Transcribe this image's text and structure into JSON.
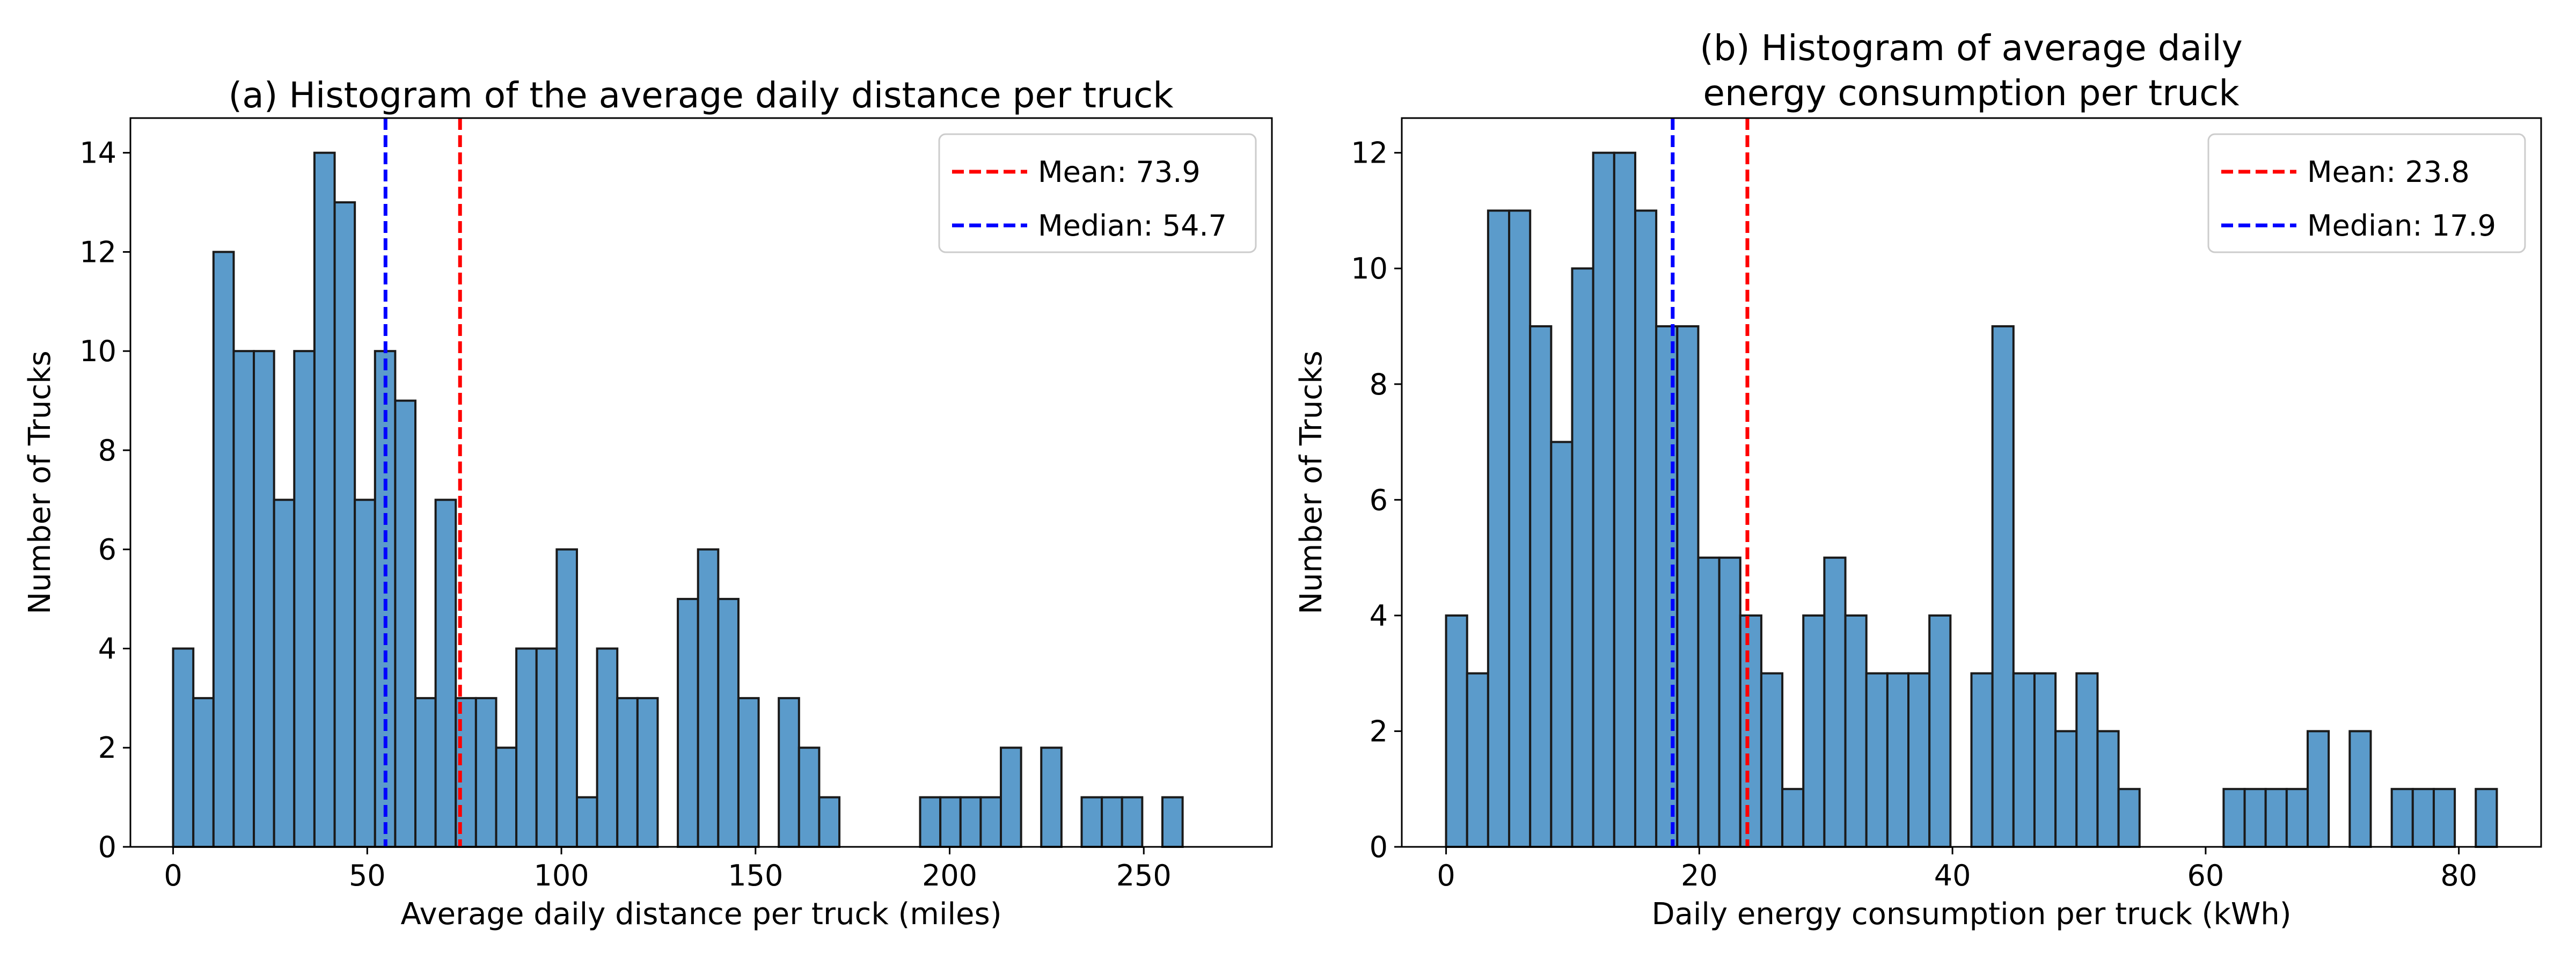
{
  "chart_data": [
    {
      "type": "bar",
      "title": [
        "(a) Histogram of the average daily distance per truck"
      ],
      "xlabel": "Average daily distance per truck (miles)",
      "ylabel": "Number of Trucks",
      "xlim": [
        -11,
        283
      ],
      "ylim": [
        0,
        14.7
      ],
      "xticks": [
        0,
        50,
        100,
        150,
        200,
        250
      ],
      "yticks": [
        0,
        2,
        4,
        6,
        8,
        10,
        12,
        14
      ],
      "bin_start": 0,
      "bin_width": 5.2,
      "counts": [
        4,
        3,
        12,
        10,
        10,
        7,
        10,
        14,
        13,
        7,
        10,
        9,
        3,
        7,
        3,
        3,
        2,
        4,
        4,
        6,
        1,
        4,
        3,
        3,
        0,
        5,
        6,
        5,
        3,
        0,
        3,
        2,
        1,
        0,
        0,
        0,
        0,
        1,
        1,
        1,
        1,
        2,
        0,
        2,
        0,
        1,
        1,
        1,
        0,
        1
      ],
      "lines": [
        {
          "name": "Mean: 73.9",
          "x": 73.9,
          "color": "#ff0000"
        },
        {
          "name": "Median: 54.7",
          "x": 54.7,
          "color": "#0000ff"
        }
      ],
      "grid": false,
      "legend": "top-right"
    },
    {
      "type": "bar",
      "title": [
        "(b) Histogram of average daily",
        "energy consumption per truck"
      ],
      "xlabel": "Daily energy consumption per truck (kWh)",
      "ylabel": "Number of Trucks",
      "xlim": [
        -3.5,
        86.5
      ],
      "ylim": [
        0,
        12.6
      ],
      "xticks": [
        0,
        20,
        40,
        60,
        80
      ],
      "yticks": [
        0,
        2,
        4,
        6,
        8,
        10,
        12
      ],
      "bin_start": 0,
      "bin_width": 1.66,
      "counts": [
        4,
        3,
        11,
        11,
        9,
        7,
        10,
        12,
        12,
        11,
        9,
        9,
        5,
        5,
        4,
        3,
        1,
        4,
        5,
        4,
        3,
        3,
        3,
        4,
        0,
        3,
        9,
        3,
        3,
        2,
        3,
        2,
        1,
        0,
        0,
        0,
        0,
        1,
        1,
        1,
        1,
        2,
        0,
        2,
        0,
        1,
        1,
        1,
        0,
        1
      ],
      "lines": [
        {
          "name": "Mean: 23.8",
          "x": 23.8,
          "color": "#ff0000"
        },
        {
          "name": "Median: 17.9",
          "x": 17.9,
          "color": "#0000ff"
        }
      ],
      "grid": false,
      "legend": "top-right"
    }
  ]
}
